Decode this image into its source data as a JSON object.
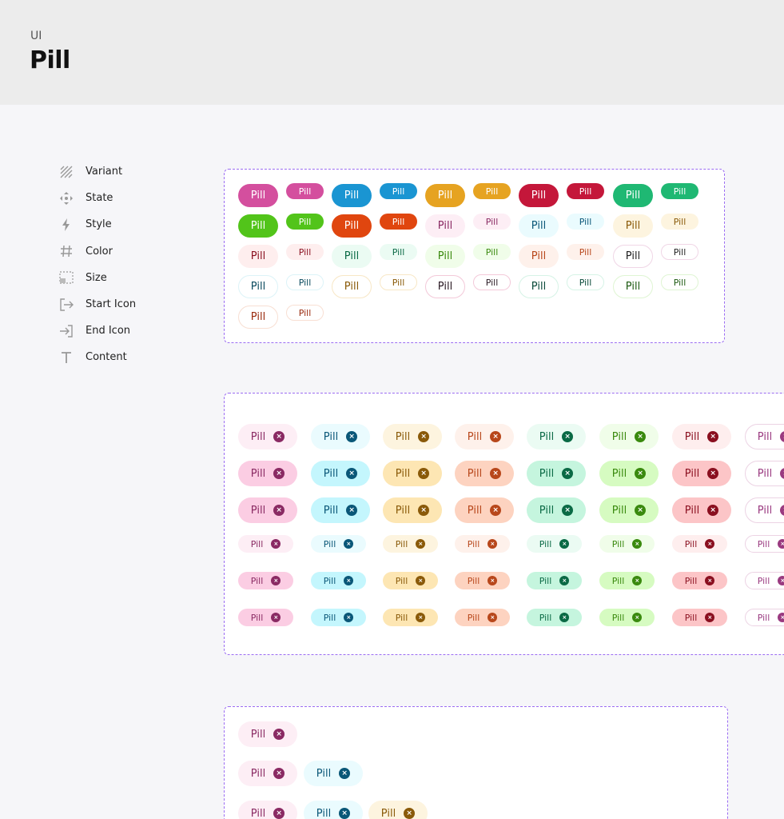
{
  "header": {
    "breadcrumb": "UI",
    "title": "Pill"
  },
  "props": [
    {
      "label": "Variant",
      "icon": "variant-hatch-icon"
    },
    {
      "label": "State",
      "icon": "state-move-icon"
    },
    {
      "label": "Style",
      "icon": "style-bolt-icon"
    },
    {
      "label": "Color",
      "icon": "color-hash-icon"
    },
    {
      "label": "Size",
      "icon": "size-dashed-box-icon"
    },
    {
      "label": "Start Icon",
      "icon": "start-icon-arrow-in-icon"
    },
    {
      "label": "End Icon",
      "icon": "end-icon-arrow-out-icon"
    },
    {
      "label": "Content",
      "icon": "content-text-icon"
    }
  ],
  "pill_label": "Pill",
  "variants": [
    {
      "bg": "#d44f9e",
      "fg": "#ffffff",
      "bd": ""
    },
    {
      "bg": "#1a95d2",
      "fg": "#ffffff",
      "bd": ""
    },
    {
      "bg": "#e6a321",
      "fg": "#ffffff",
      "bd": ""
    },
    {
      "bg": "#c4173a",
      "fg": "#ffffff",
      "bd": ""
    },
    {
      "bg": "#1fb873",
      "fg": "#ffffff",
      "bd": ""
    },
    {
      "bg": "#52c41a",
      "fg": "#ffffff",
      "bd": ""
    },
    {
      "bg": "#e0460f",
      "fg": "#ffffff",
      "bd": ""
    },
    {
      "bg": "#fdeef5",
      "fg": "#8a2a63",
      "bd": ""
    },
    {
      "bg": "#eafbfe",
      "fg": "#0a5778",
      "bd": ""
    },
    {
      "bg": "#fdf4df",
      "fg": "#8a5a09",
      "bd": ""
    },
    {
      "bg": "#feeeee",
      "fg": "#8a0f1f",
      "bd": ""
    },
    {
      "bg": "#ebfbf3",
      "fg": "#0a6a45",
      "bd": ""
    },
    {
      "bg": "#f0fde9",
      "fg": "#3a8a0e",
      "bd": ""
    },
    {
      "bg": "#fef1eb",
      "fg": "#b8471b",
      "bd": ""
    },
    {
      "bg": "#ffffff",
      "fg": "#222222",
      "bd": "#f0d6e6"
    },
    {
      "bg": "#ffffff",
      "fg": "#0a4a5e",
      "bd": "#dcf3f8"
    },
    {
      "bg": "#ffffff",
      "fg": "#8a5a09",
      "bd": "#f8e7c6"
    },
    {
      "bg": "#ffffff",
      "fg": "#2a1a24",
      "bd": "#f3c9d9"
    },
    {
      "bg": "#ffffff",
      "fg": "#0a4a3a",
      "bd": "#d6f3e6"
    },
    {
      "bg": "#ffffff",
      "fg": "#1e5a12",
      "bd": "#dff5d3"
    },
    {
      "bg": "#ffffff",
      "fg": "#9a2a0e",
      "bd": "#f8dfd3"
    }
  ],
  "colors": [
    {
      "fg": "#8a2a63",
      "ic": "#8a2a63",
      "light": "#fdeef5",
      "mid": "#fbcde3"
    },
    {
      "fg": "#0a5778",
      "ic": "#0a5778",
      "light": "#eafbfe",
      "mid": "#c4f6fd"
    },
    {
      "fg": "#8a5a09",
      "ic": "#8a5a09",
      "light": "#fdf4df",
      "mid": "#fde6b3"
    },
    {
      "fg": "#b8471b",
      "ic": "#b8471b",
      "light": "#fef1eb",
      "mid": "#fdd3c0"
    },
    {
      "fg": "#0a6a45",
      "ic": "#0a6a45",
      "light": "#ebfbf3",
      "mid": "#c5f5de"
    },
    {
      "fg": "#3a8a0e",
      "ic": "#3a8a0e",
      "light": "#f0fde9",
      "mid": "#d6fbc1"
    },
    {
      "fg": "#8a0f1f",
      "ic": "#8a0f1f",
      "light": "#feeeee",
      "mid": "#fcc5c7"
    },
    {
      "fg": "#9a3a80",
      "ic": "#9a3a80",
      "light": "#fdf2f8",
      "mid": "#fdf2f8"
    }
  ]
}
